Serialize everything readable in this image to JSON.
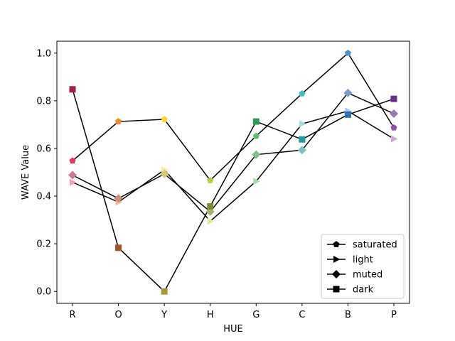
{
  "chart_data": {
    "type": "line",
    "title": "",
    "xlabel": "HUE",
    "ylabel": "WAVE Value",
    "categories": [
      "R",
      "O",
      "Y",
      "H",
      "G",
      "C",
      "B",
      "P"
    ],
    "ylim": [
      -0.05,
      1.05
    ],
    "yticks": [
      0.0,
      0.2,
      0.4,
      0.6,
      0.8,
      1.0
    ],
    "ytick_labels": [
      "0.0",
      "0.2",
      "0.4",
      "0.6",
      "0.8",
      "1.0"
    ],
    "grid": false,
    "legend_position": "lower-right",
    "line_color": "#000000",
    "series": [
      {
        "name": "saturated",
        "marker": "pentagon",
        "values": [
          0.548,
          0.713,
          0.722,
          0.466,
          0.652,
          0.83,
          1.0,
          0.687
        ],
        "point_colors": [
          "#e8335f",
          "#f08a24",
          "#f5d82a",
          "#b6c94a",
          "#5bbd6e",
          "#3fbec4",
          "#4a8fd6",
          "#8a4fa6"
        ]
      },
      {
        "name": "light",
        "marker": "triangle-right",
        "values": [
          0.458,
          0.375,
          0.51,
          0.295,
          0.462,
          0.703,
          0.757,
          0.64
        ],
        "point_colors": [
          "#f2a0b2",
          "#f5b592",
          "#f5ec9c",
          "#dde8a0",
          "#a7dcaa",
          "#9fdde0",
          "#a8c6ea",
          "#c9a8db"
        ]
      },
      {
        "name": "muted",
        "marker": "diamond",
        "values": [
          0.488,
          0.39,
          0.493,
          0.335,
          0.574,
          0.593,
          0.833,
          0.746
        ],
        "point_colors": [
          "#c97a90",
          "#c98f7a",
          "#d6c77a",
          "#a7b26b",
          "#7fbd8a",
          "#7fbfc2",
          "#7e9fc9",
          "#9d7aae"
        ]
      },
      {
        "name": "dark",
        "marker": "square",
        "values": [
          0.848,
          0.183,
          0.0,
          0.357,
          0.713,
          0.638,
          0.742,
          0.808
        ],
        "point_colors": [
          "#a61e45",
          "#a55428",
          "#a89a3c",
          "#7a8c3a",
          "#2e9a5a",
          "#1f9aa0",
          "#2f6fb5",
          "#6a2f94"
        ]
      }
    ]
  }
}
